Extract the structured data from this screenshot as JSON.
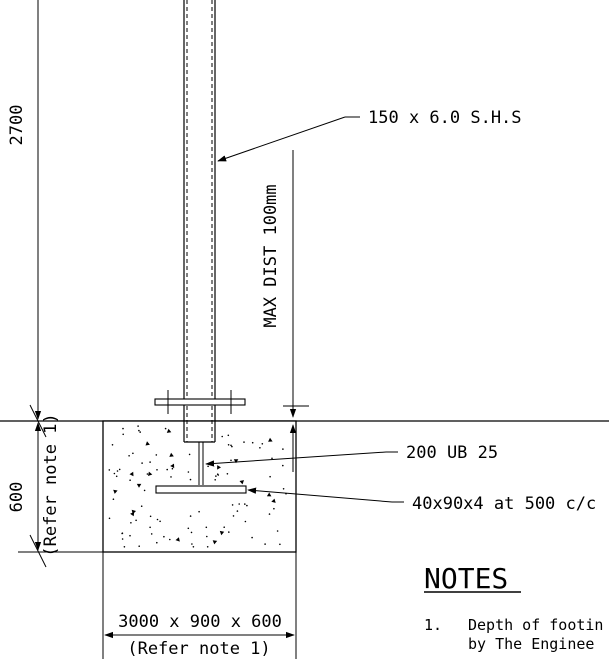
{
  "drawing": {
    "dimensions": {
      "post_height": "2700",
      "footing_depth": "600",
      "footing_depth_ref": "(Refer note 1)",
      "footing_size": "3000 x 900 x 600",
      "footing_size_ref": "(Refer note 1)",
      "max_dist": "MAX DIST 100mm"
    },
    "callouts": {
      "post": "150 x 6.0 S.H.S",
      "beam": "200 UB 25",
      "plate": "40x90x4 at 500 c/c"
    },
    "notes": {
      "heading": "NOTES",
      "items": [
        {
          "number": "1.",
          "line1": "Depth of footin",
          "line2": "by The Enginee"
        }
      ]
    }
  }
}
